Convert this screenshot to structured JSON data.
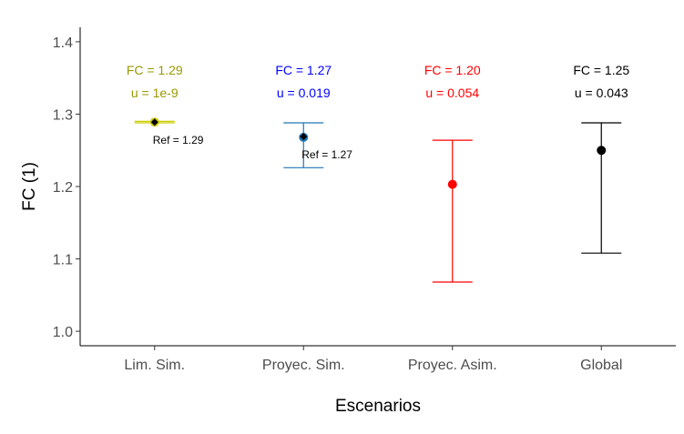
{
  "chart_data": {
    "type": "scatter",
    "subtype": "point-with-error-bars",
    "xlabel": "Escenarios",
    "ylabel": "FC (1)",
    "ylim": [
      0.98,
      1.42
    ],
    "yticks": [
      1.0,
      1.1,
      1.2,
      1.3,
      1.4
    ],
    "ytick_labels": [
      "1.0",
      "1.1",
      "1.2",
      "1.3",
      "1.4"
    ],
    "categories": [
      "Lim. Sim.",
      "Proyec. Sim.",
      "Proyec. Asim.",
      "Global"
    ],
    "grid": false,
    "legend": "none",
    "points": [
      {
        "category": "Lim. Sim.",
        "value": 1.289,
        "lower": 1.288,
        "upper": 1.29,
        "color": "#cccc00",
        "fc_label": "FC = 1.29",
        "u_label": "u = 1e-9",
        "label_color": "#999900",
        "ref_value": 1.289,
        "ref_label": "Ref = 1.29"
      },
      {
        "category": "Proyec. Sim.",
        "value": 1.268,
        "lower": 1.226,
        "upper": 1.288,
        "color": "#1f77b4",
        "fc_label": "FC = 1.27",
        "u_label": "u = 0.019",
        "label_color": "#0000ff",
        "ref_value": 1.269,
        "ref_label": "Ref = 1.27"
      },
      {
        "category": "Proyec. Asim.",
        "value": 1.203,
        "lower": 1.068,
        "upper": 1.264,
        "color": "#ff0000",
        "fc_label": "FC = 1.20",
        "u_label": "u = 0.054",
        "label_color": "#ff0000",
        "ref_value": null,
        "ref_label": ""
      },
      {
        "category": "Global",
        "value": 1.25,
        "lower": 1.108,
        "upper": 1.288,
        "color": "#000000",
        "fc_label": "FC = 1.25",
        "u_label": "u = 0.043",
        "label_color": "#000000",
        "ref_value": null,
        "ref_label": ""
      }
    ]
  }
}
